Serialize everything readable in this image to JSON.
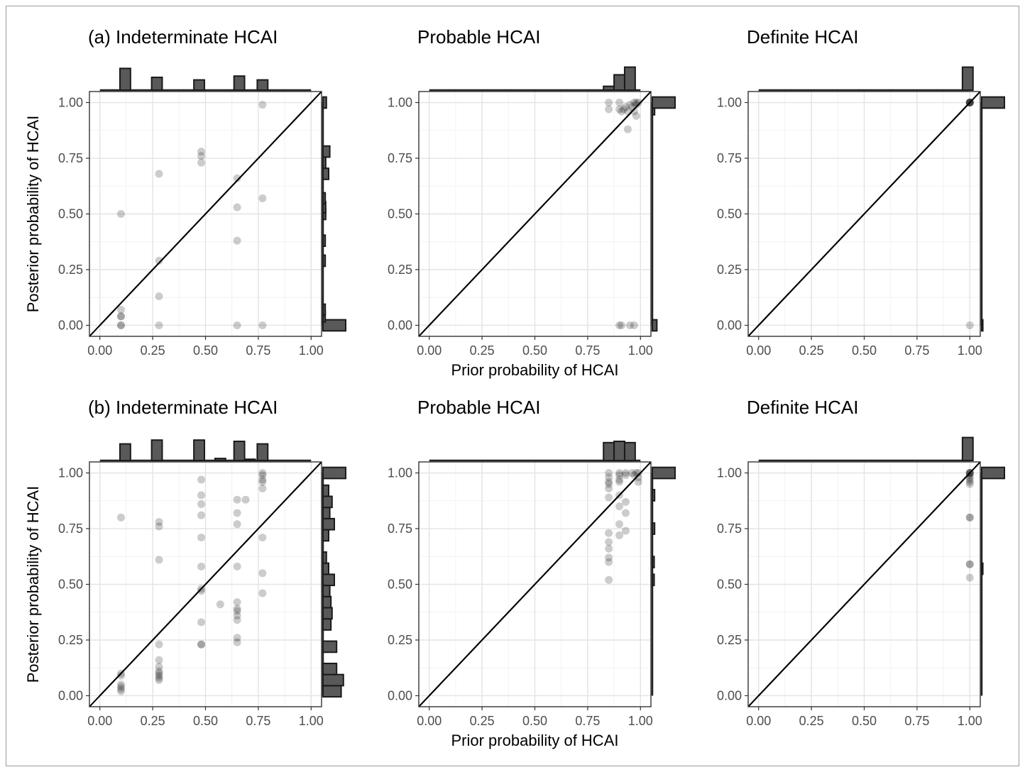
{
  "chart_data": [
    {
      "type": "scatter",
      "title": "(a) Indeterminate HCAI",
      "xlabel": "",
      "ylabel": "Posterior probability of HCAI",
      "xlim": [
        0,
        1
      ],
      "ylim": [
        0,
        1
      ],
      "xticks": [
        "0.00",
        "0.25",
        "0.50",
        "0.75",
        "1.00"
      ],
      "yticks": [
        "0.00",
        "0.25",
        "0.50",
        "0.75",
        "1.00"
      ],
      "diagonal": "y = x",
      "points": [
        [
          0.1,
          0.5
        ],
        [
          0.1,
          0.07
        ],
        [
          0.1,
          0.04
        ],
        [
          0.1,
          0.04
        ],
        [
          0.1,
          0.0
        ],
        [
          0.1,
          0.0
        ],
        [
          0.28,
          0.68
        ],
        [
          0.28,
          0.29
        ],
        [
          0.28,
          0.13
        ],
        [
          0.28,
          0.0
        ],
        [
          0.48,
          0.78
        ],
        [
          0.48,
          0.76
        ],
        [
          0.48,
          0.73
        ],
        [
          0.65,
          0.66
        ],
        [
          0.65,
          0.53
        ],
        [
          0.65,
          0.38
        ],
        [
          0.65,
          0.0
        ],
        [
          0.77,
          0.99
        ],
        [
          0.77,
          0.57
        ],
        [
          0.77,
          0.0
        ]
      ],
      "top_histogram": [
        {
          "x": 0.12,
          "h": 0.85
        },
        {
          "x": 0.27,
          "h": 0.5
        },
        {
          "x": 0.47,
          "h": 0.4
        },
        {
          "x": 0.66,
          "h": 0.55
        },
        {
          "x": 0.77,
          "h": 0.4
        }
      ],
      "right_histogram": [
        {
          "y": 0.0,
          "w": 1.0
        },
        {
          "y": 0.04,
          "w": 0.1
        },
        {
          "y": 0.07,
          "w": 0.1
        },
        {
          "y": 0.29,
          "w": 0.1
        },
        {
          "y": 0.38,
          "w": 0.1
        },
        {
          "y": 0.5,
          "w": 0.12
        },
        {
          "y": 0.53,
          "w": 0.12
        },
        {
          "y": 0.57,
          "w": 0.1
        },
        {
          "y": 0.68,
          "w": 0.25
        },
        {
          "y": 0.73,
          "w": 0.12
        },
        {
          "y": 0.78,
          "w": 0.3
        },
        {
          "y": 1.0,
          "w": 0.15
        }
      ]
    },
    {
      "type": "scatter",
      "title": "Probable HCAI",
      "xlabel": "Prior probability of HCAI",
      "ylabel": "",
      "xlim": [
        0,
        1
      ],
      "ylim": [
        0,
        1
      ],
      "xticks": [
        "0.00",
        "0.25",
        "0.50",
        "0.75",
        "1.00"
      ],
      "yticks": [
        "0.00",
        "0.25",
        "0.50",
        "0.75",
        "1.00"
      ],
      "diagonal": "y = x",
      "points": [
        [
          0.85,
          1.0
        ],
        [
          0.85,
          0.97
        ],
        [
          0.9,
          1.0
        ],
        [
          0.9,
          0.97
        ],
        [
          0.91,
          0.96
        ],
        [
          0.92,
          0.97
        ],
        [
          0.93,
          0.98
        ],
        [
          0.94,
          0.96
        ],
        [
          0.95,
          0.99
        ],
        [
          0.96,
          0.98
        ],
        [
          0.97,
          1.0
        ],
        [
          0.98,
          0.99
        ],
        [
          0.98,
          1.0
        ],
        [
          0.99,
          1.0
        ],
        [
          0.97,
          0.96
        ],
        [
          0.98,
          0.94
        ],
        [
          0.94,
          0.88
        ],
        [
          0.9,
          0.0
        ],
        [
          0.91,
          0.0
        ],
        [
          0.95,
          0.0
        ],
        [
          0.97,
          0.0
        ]
      ],
      "top_histogram": [
        {
          "x": 0.85,
          "h": 0.15
        },
        {
          "x": 0.9,
          "h": 0.6
        },
        {
          "x": 0.95,
          "h": 0.9
        }
      ],
      "right_histogram": [
        {
          "y": 0.0,
          "w": 0.2
        },
        {
          "y": 0.97,
          "w": 0.1
        },
        {
          "y": 1.0,
          "w": 1.0
        }
      ]
    },
    {
      "type": "scatter",
      "title": "Definite HCAI",
      "xlabel": "",
      "ylabel": "",
      "xlim": [
        0,
        1
      ],
      "ylim": [
        0,
        1
      ],
      "xticks": [
        "0.00",
        "0.25",
        "0.50",
        "0.75",
        "1.00"
      ],
      "yticks": [
        "0.00",
        "0.25",
        "0.50",
        "0.75",
        "1.00"
      ],
      "diagonal": "y = x",
      "points": [
        [
          1.0,
          1.0
        ],
        [
          1.0,
          1.0
        ],
        [
          1.0,
          1.0
        ],
        [
          1.0,
          1.0
        ],
        [
          1.0,
          1.0
        ],
        [
          1.0,
          1.0
        ],
        [
          1.0,
          0.0
        ]
      ],
      "top_histogram": [
        {
          "x": 0.99,
          "h": 0.9
        }
      ],
      "right_histogram": [
        {
          "y": 0.0,
          "w": 0.05
        },
        {
          "y": 1.0,
          "w": 1.0
        }
      ]
    },
    {
      "type": "scatter",
      "title": "(b) Indeterminate HCAI",
      "xlabel": "",
      "ylabel": "Posterior probability of HCAI",
      "xlim": [
        0,
        1
      ],
      "ylim": [
        0,
        1
      ],
      "xticks": [
        "0.00",
        "0.25",
        "0.50",
        "0.75",
        "1.00"
      ],
      "yticks": [
        "0.00",
        "0.25",
        "0.50",
        "0.75",
        "1.00"
      ],
      "diagonal": "y = x",
      "points": [
        [
          0.1,
          0.8
        ],
        [
          0.1,
          0.1
        ],
        [
          0.1,
          0.09
        ],
        [
          0.1,
          0.05
        ],
        [
          0.1,
          0.04
        ],
        [
          0.1,
          0.03
        ],
        [
          0.1,
          0.02
        ],
        [
          0.28,
          0.78
        ],
        [
          0.28,
          0.76
        ],
        [
          0.28,
          0.61
        ],
        [
          0.28,
          0.23
        ],
        [
          0.28,
          0.16
        ],
        [
          0.28,
          0.13
        ],
        [
          0.28,
          0.11
        ],
        [
          0.28,
          0.1
        ],
        [
          0.28,
          0.09
        ],
        [
          0.28,
          0.08
        ],
        [
          0.28,
          0.07
        ],
        [
          0.48,
          0.97
        ],
        [
          0.48,
          0.9
        ],
        [
          0.48,
          0.86
        ],
        [
          0.48,
          0.81
        ],
        [
          0.48,
          0.71
        ],
        [
          0.48,
          0.58
        ],
        [
          0.48,
          0.48
        ],
        [
          0.48,
          0.47
        ],
        [
          0.48,
          0.33
        ],
        [
          0.48,
          0.23
        ],
        [
          0.48,
          0.23
        ],
        [
          0.57,
          0.41
        ],
        [
          0.65,
          0.88
        ],
        [
          0.65,
          0.82
        ],
        [
          0.65,
          0.77
        ],
        [
          0.65,
          0.58
        ],
        [
          0.65,
          0.42
        ],
        [
          0.65,
          0.39
        ],
        [
          0.65,
          0.38
        ],
        [
          0.65,
          0.36
        ],
        [
          0.65,
          0.34
        ],
        [
          0.65,
          0.26
        ],
        [
          0.65,
          0.24
        ],
        [
          0.69,
          0.88
        ],
        [
          0.77,
          1.0
        ],
        [
          0.77,
          0.99
        ],
        [
          0.77,
          0.97
        ],
        [
          0.77,
          0.96
        ],
        [
          0.77,
          0.93
        ],
        [
          0.77,
          0.71
        ],
        [
          0.77,
          0.55
        ],
        [
          0.77,
          0.46
        ]
      ],
      "top_histogram": [
        {
          "x": 0.12,
          "h": 0.65
        },
        {
          "x": 0.27,
          "h": 0.8
        },
        {
          "x": 0.47,
          "h": 0.8
        },
        {
          "x": 0.57,
          "h": 0.08
        },
        {
          "x": 0.66,
          "h": 0.75
        },
        {
          "x": 0.71,
          "h": 0.05
        },
        {
          "x": 0.77,
          "h": 0.65
        }
      ],
      "right_histogram": [
        {
          "y": 0.02,
          "w": 0.8
        },
        {
          "y": 0.07,
          "w": 0.9
        },
        {
          "y": 0.12,
          "w": 0.6
        },
        {
          "y": 0.22,
          "w": 0.6
        },
        {
          "y": 0.32,
          "w": 0.35
        },
        {
          "y": 0.37,
          "w": 0.4
        },
        {
          "y": 0.42,
          "w": 0.35
        },
        {
          "y": 0.47,
          "w": 0.3
        },
        {
          "y": 0.52,
          "w": 0.5
        },
        {
          "y": 0.57,
          "w": 0.25
        },
        {
          "y": 0.62,
          "w": 0.15
        },
        {
          "y": 0.72,
          "w": 0.25
        },
        {
          "y": 0.77,
          "w": 0.5
        },
        {
          "y": 0.82,
          "w": 0.3
        },
        {
          "y": 0.87,
          "w": 0.4
        },
        {
          "y": 0.92,
          "w": 0.25
        },
        {
          "y": 1.0,
          "w": 1.0
        }
      ]
    },
    {
      "type": "scatter",
      "title": "Probable HCAI",
      "xlabel": "Prior probability of HCAI",
      "ylabel": "",
      "xlim": [
        0,
        1
      ],
      "ylim": [
        0,
        1
      ],
      "xticks": [
        "0.00",
        "0.25",
        "0.50",
        "0.75",
        "1.00"
      ],
      "yticks": [
        "0.00",
        "0.25",
        "0.50",
        "0.75",
        "1.00"
      ],
      "diagonal": "y = x",
      "points": [
        [
          0.85,
          1.0
        ],
        [
          0.85,
          0.98
        ],
        [
          0.85,
          0.96
        ],
        [
          0.85,
          0.95
        ],
        [
          0.85,
          0.93
        ],
        [
          0.85,
          0.89
        ],
        [
          0.85,
          0.73
        ],
        [
          0.85,
          0.69
        ],
        [
          0.85,
          0.66
        ],
        [
          0.85,
          0.62
        ],
        [
          0.85,
          0.6
        ],
        [
          0.85,
          0.52
        ],
        [
          0.9,
          1.0
        ],
        [
          0.9,
          0.99
        ],
        [
          0.9,
          0.97
        ],
        [
          0.9,
          0.96
        ],
        [
          0.9,
          0.9
        ],
        [
          0.9,
          0.85
        ],
        [
          0.9,
          0.77
        ],
        [
          0.9,
          0.72
        ],
        [
          0.93,
          1.0
        ],
        [
          0.93,
          0.99
        ],
        [
          0.93,
          0.87
        ],
        [
          0.93,
          0.82
        ],
        [
          0.93,
          0.74
        ],
        [
          0.96,
          1.0
        ],
        [
          0.97,
          0.99
        ],
        [
          0.98,
          1.0
        ],
        [
          0.99,
          1.0
        ],
        [
          0.99,
          0.98
        ],
        [
          0.99,
          0.96
        ]
      ],
      "top_histogram": [
        {
          "x": 0.85,
          "h": 0.7
        },
        {
          "x": 0.9,
          "h": 0.75
        },
        {
          "x": 0.95,
          "h": 0.7
        }
      ],
      "right_histogram": [
        {
          "y": 1.0,
          "w": 1.0
        },
        {
          "y": 0.9,
          "w": 0.1
        },
        {
          "y": 0.75,
          "w": 0.1
        },
        {
          "y": 0.6,
          "w": 0.08
        },
        {
          "y": 0.52,
          "w": 0.08
        }
      ]
    },
    {
      "type": "scatter",
      "title": "Definite HCAI",
      "xlabel": "",
      "ylabel": "",
      "xlim": [
        0,
        1
      ],
      "ylim": [
        0,
        1
      ],
      "xticks": [
        "0.00",
        "0.25",
        "0.50",
        "0.75",
        "1.00"
      ],
      "yticks": [
        "0.00",
        "0.25",
        "0.50",
        "0.75",
        "1.00"
      ],
      "diagonal": "y = x",
      "points": [
        [
          1.0,
          1.0
        ],
        [
          1.0,
          1.0
        ],
        [
          1.0,
          1.0
        ],
        [
          1.0,
          1.0
        ],
        [
          1.0,
          0.99
        ],
        [
          1.0,
          0.98
        ],
        [
          1.0,
          0.97
        ],
        [
          1.0,
          0.96
        ],
        [
          1.0,
          0.95
        ],
        [
          1.0,
          0.8
        ],
        [
          1.0,
          0.8
        ],
        [
          1.0,
          0.59
        ],
        [
          1.0,
          0.59
        ],
        [
          1.0,
          0.53
        ]
      ],
      "top_histogram": [
        {
          "x": 0.99,
          "h": 0.9
        }
      ],
      "right_histogram": [
        {
          "y": 1.0,
          "w": 1.0
        },
        {
          "y": 0.57,
          "w": 0.05
        }
      ]
    }
  ]
}
